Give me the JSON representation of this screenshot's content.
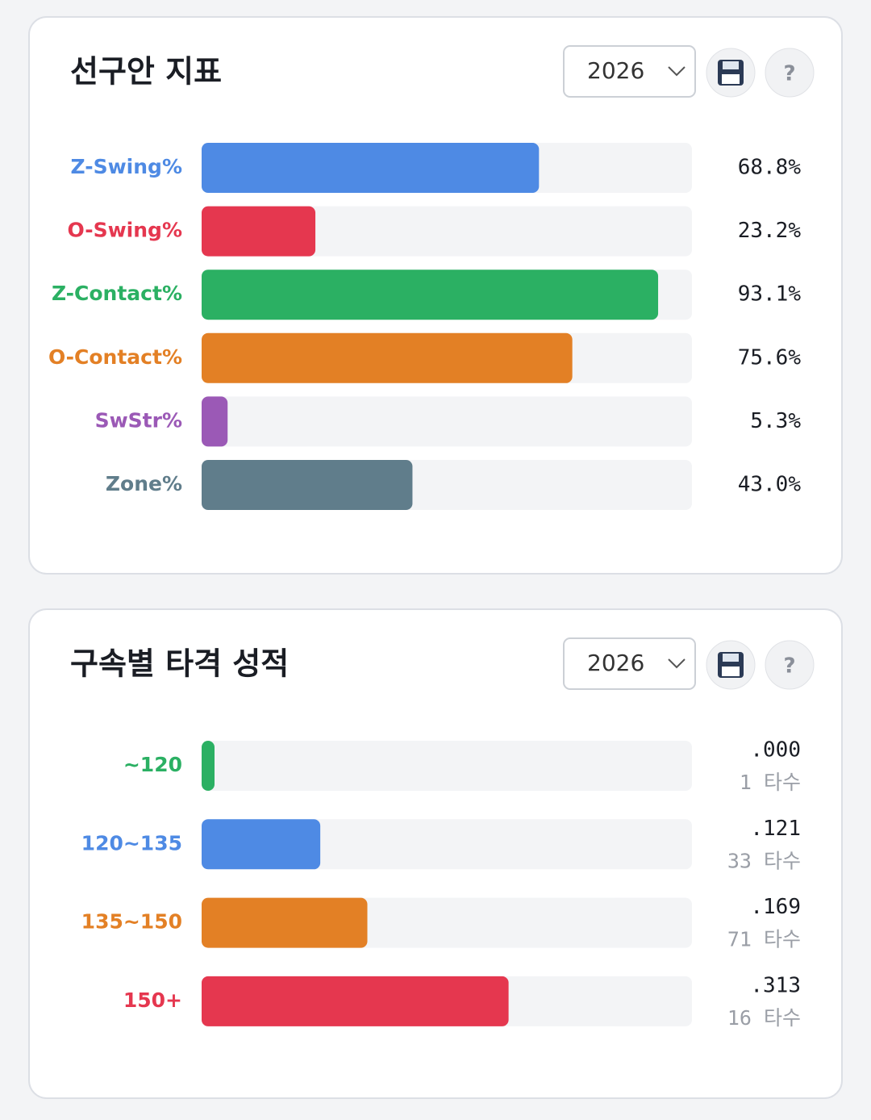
{
  "chart_data": [
    {
      "type": "bar",
      "orientation": "horizontal",
      "title": "선구안 지표",
      "year": "2026",
      "help": "?",
      "categories": [
        "Z-Swing%",
        "O-Swing%",
        "Z-Contact%",
        "O-Contact%",
        "SwStr%",
        "Zone%"
      ],
      "values": [
        68.8,
        23.2,
        93.1,
        75.6,
        5.3,
        43.0
      ],
      "value_labels": [
        "68.8%",
        "23.2%",
        "93.1%",
        "75.6%",
        "5.3%",
        "43.0%"
      ],
      "colors": [
        "#4e8ae4",
        "#e5374f",
        "#2bb063",
        "#e38025",
        "#9b59b6",
        "#607d8b"
      ],
      "xlim": [
        0,
        100
      ]
    },
    {
      "type": "bar",
      "orientation": "horizontal",
      "title": "구속별 타격 성적",
      "year": "2026",
      "help": "?",
      "categories": [
        "~120",
        "120~135",
        "135~150",
        "150+"
      ],
      "values": [
        0.0,
        0.121,
        0.169,
        0.313
      ],
      "value_labels": [
        ".000",
        ".121",
        ".169",
        ".313"
      ],
      "sub_labels": [
        "1 타수",
        "33 타수",
        "71 타수",
        "16 타수"
      ],
      "colors": [
        "#2bb063",
        "#4e8ae4",
        "#e38025",
        "#e5374f"
      ],
      "xlim": [
        0,
        0.5
      ]
    }
  ]
}
